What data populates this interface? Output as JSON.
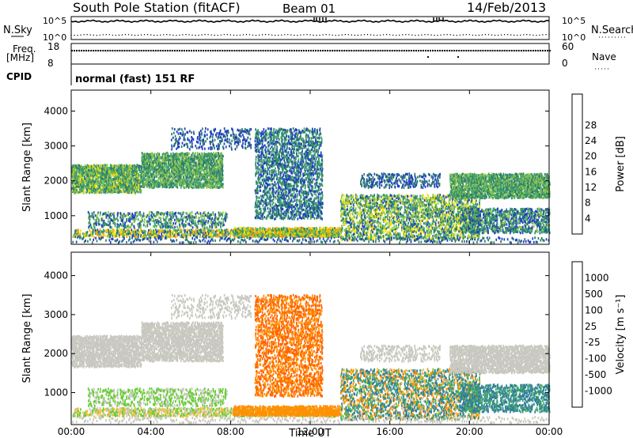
{
  "header": {
    "station": "South Pole Station (fitACF)",
    "beam": "Beam 01",
    "date": "14/Feb/2013"
  },
  "side_labels": {
    "nsky": "N.Sky",
    "nsearch": "N.Search",
    "freq": "Freq.",
    "freq_unit": "[MHz]",
    "nave": "Nave",
    "cpid": "CPID",
    "cpid_value": "normal (fast) 151 RF"
  },
  "chart_data": [
    {
      "type": "line",
      "name": "noise-panel",
      "left_ticks": [
        "10^5",
        "10^0"
      ],
      "right_ticks": [
        "10^5",
        "10^0"
      ],
      "series_sky_level": 0.8,
      "series_search_level": 0.2
    },
    {
      "type": "line",
      "name": "freq-nave-panel",
      "left_ticks": [
        18,
        8
      ],
      "right_ticks": [
        60,
        0
      ],
      "freq_level": 0.65
    },
    {
      "type": "heatmap",
      "name": "power",
      "x_ticks": [
        "00:00",
        "04:00",
        "08:00",
        "12:00",
        "16:00",
        "20:00",
        "00:00"
      ],
      "xlim_hours": [
        0,
        24
      ],
      "ylabel": "Slant Range [km]",
      "ylim": [
        180,
        4600
      ],
      "y_ticks": [
        1000,
        2000,
        3000,
        4000
      ],
      "colorbar": {
        "label": "Power [dB]",
        "ticks": [
          4,
          8,
          12,
          16,
          20,
          24,
          28
        ],
        "colors": [
          "#0000ff",
          "#1f3fbf",
          "#2e7d6e",
          "#3fa36a",
          "#8bc34a",
          "#f4e000",
          "#ffa000",
          "#ff6000",
          "#e00000"
        ]
      }
    },
    {
      "type": "heatmap",
      "name": "velocity",
      "x_ticks": [
        "00:00",
        "04:00",
        "08:00",
        "12:00",
        "16:00",
        "20:00",
        "00:00"
      ],
      "xlim_hours": [
        0,
        24
      ],
      "xlabel": "Time UT",
      "ylabel": "Slant Range [km]",
      "ylim": [
        180,
        4600
      ],
      "y_ticks": [
        1000,
        2000,
        3000,
        4000
      ],
      "colorbar": {
        "label": "Velocity [m s⁻¹]",
        "ticks": [
          "1000",
          "500",
          "100",
          "25",
          "-25",
          "-100",
          "-500",
          "-1000"
        ],
        "colors": [
          "#1f3fbf",
          "#2e7d9e",
          "#3fa36a",
          "#66cc33",
          "#c8c8c0",
          "#f0c040",
          "#ff9000",
          "#ff6000",
          "#e00000"
        ]
      }
    }
  ]
}
